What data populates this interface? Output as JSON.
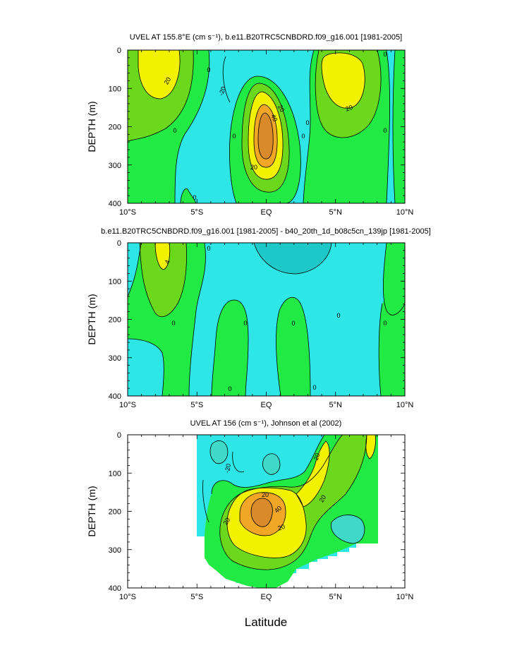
{
  "figure": {
    "xlabel": "Latitude",
    "colors": {
      "neg_deep": "#1ec8c8",
      "neg": "#2fe6e6",
      "neg_light": "#3fd9c7",
      "near_zero": "#12e6a0",
      "zero_pos": "#22ea44",
      "pos_10": "#6cd81c",
      "pos_20": "#f2f200",
      "pos_30": "#f2a626",
      "pos_40": "#d98a2a",
      "background": "#ffffff",
      "contour": "#000000"
    }
  },
  "chart_data": [
    {
      "type": "heatmap",
      "title": "UVEL AT 155.8°E (cm s⁻¹), b.e11.B20TRC5CNBDRD.f09_g16.001 [1981-2005]",
      "xlabel": "",
      "ylabel": "DEPTH (m)",
      "xlim": [
        -10,
        10
      ],
      "ylim": [
        0,
        400
      ],
      "y_inverted": true,
      "x_ticks": [
        -10,
        -5,
        0,
        5,
        10
      ],
      "x_tick_labels": [
        "10°S",
        "5°S",
        "EQ",
        "5°N",
        "10°N"
      ],
      "y_ticks": [
        0,
        100,
        200,
        300,
        400
      ],
      "y_tick_labels": [
        "0",
        "100",
        "200",
        "300",
        "400"
      ],
      "contour_labels": [
        "20",
        "0",
        "-20",
        "20",
        "40",
        "20",
        "0",
        "0",
        "0",
        "20",
        "0",
        "0",
        "0",
        "0"
      ],
      "features": [
        {
          "kind": "max",
          "lat": -7.8,
          "depth": 60,
          "value": 30
        },
        {
          "kind": "max",
          "lat": -0.4,
          "depth": 200,
          "value": 50
        },
        {
          "kind": "max",
          "lat": 5.6,
          "depth": 60,
          "value": 30
        },
        {
          "kind": "min",
          "lat": -2.0,
          "depth": 100,
          "value": -20
        }
      ]
    },
    {
      "type": "heatmap",
      "title": "b.e11.B20TRC5CNBDRD.f09_g16.001 [1981-2005] - b40_20th_1d_b08c5cn_139jp [1981-2005]",
      "xlabel": "",
      "ylabel": "DEPTH (m)",
      "xlim": [
        -10,
        10
      ],
      "ylim": [
        0,
        400
      ],
      "y_inverted": true,
      "x_ticks": [
        -10,
        -5,
        0,
        5,
        10
      ],
      "x_tick_labels": [
        "10°S",
        "5°S",
        "EQ",
        "5°N",
        "10°N"
      ],
      "y_ticks": [
        0,
        100,
        200,
        300,
        400
      ],
      "y_tick_labels": [
        "0",
        "100",
        "200",
        "300",
        "400"
      ],
      "contour_labels": [
        "4",
        "0",
        "0",
        "0",
        "0",
        "0",
        "0",
        "0",
        "0"
      ],
      "features": [
        {
          "kind": "max",
          "lat": -7.8,
          "depth": 60,
          "value": 6
        },
        {
          "kind": "min",
          "lat": 0.5,
          "depth": 50,
          "value": -4
        }
      ]
    },
    {
      "type": "heatmap",
      "title": "UVEL AT 156 (cm s⁻¹), Johnson et al (2002)",
      "xlabel": "Latitude",
      "ylabel": "DEPTH (m)",
      "xlim": [
        -10,
        10
      ],
      "ylim": [
        0,
        400
      ],
      "y_inverted": true,
      "data_lat_range": [
        -5,
        8
      ],
      "x_ticks": [
        -10,
        -5,
        0,
        5,
        10
      ],
      "x_tick_labels": [
        "10°S",
        "5°S",
        "EQ",
        "5°N",
        "10°N"
      ],
      "y_ticks": [
        0,
        100,
        200,
        300,
        400
      ],
      "y_tick_labels": [
        "0",
        "100",
        "200",
        "300",
        "400"
      ],
      "contour_labels": [
        "-20",
        "20",
        "20",
        "20",
        "40",
        "20",
        "20"
      ],
      "features": [
        {
          "kind": "max",
          "lat": -0.3,
          "depth": 200,
          "value": 55
        },
        {
          "kind": "min",
          "lat": -2.5,
          "depth": 80,
          "value": -30
        }
      ]
    }
  ]
}
